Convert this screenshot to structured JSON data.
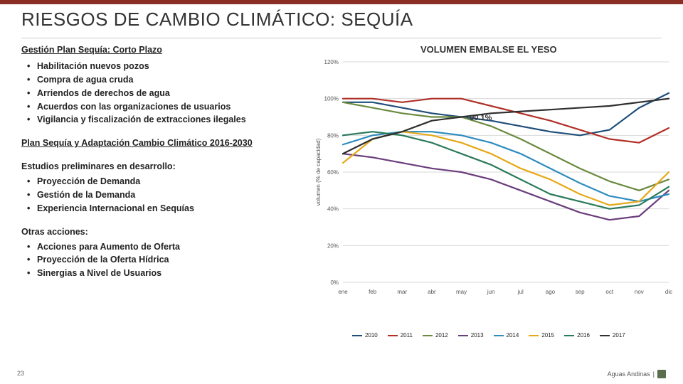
{
  "title": "RIESGOS DE CAMBIO CLIMÁTICO: SEQUÍA",
  "accent_color": "#8a2e26",
  "left": {
    "section1_title": "Gestión Plan Sequía: Corto Plazo",
    "section1_items": [
      "Habilitación nuevos pozos",
      "Compra de agua cruda",
      "Arriendos de derechos de agua",
      "Acuerdos con las organizaciones de usuarios",
      "Vigilancia y fiscalización de extracciones ilegales"
    ],
    "section2_title": "Plan Sequía y Adaptación Cambio Climático 2016-2030",
    "section3_title": "Estudios preliminares en desarrollo:",
    "section3_items": [
      "Proyección de Demanda",
      "Gestión de la Demanda",
      "Experiencia Internacional en Sequías"
    ],
    "section4_title": "Otras acciones:",
    "section4_items": [
      "Acciones para Aumento de Oferta",
      "Proyección de la Oferta Hídrica",
      "Sinergias a Nivel de Usuarios"
    ]
  },
  "chart": {
    "title": "VOLUMEN EMBALSE EL YESO",
    "type": "line",
    "x_categories": [
      "ene",
      "feb",
      "mar",
      "abr",
      "may",
      "jun",
      "jul",
      "ago",
      "sep",
      "oct",
      "nov",
      "dic"
    ],
    "ylabel": "volumen (% de capacidad)",
    "ylim": [
      0,
      120
    ],
    "ytick_step": 20,
    "ytick_labels": [
      "0%",
      "20%",
      "40%",
      "60%",
      "80%",
      "100%",
      "120%"
    ],
    "ytick_values": [
      0,
      20,
      40,
      60,
      80,
      100,
      120
    ],
    "background": "#ffffff",
    "grid_color": "#d9d9d9",
    "axis_color": "#888888",
    "label_fontsize": 8,
    "title_fontsize": 13,
    "line_width": 2.2,
    "callout": {
      "text": "90.1%",
      "month_index": 4,
      "value": 90.1
    },
    "series": [
      {
        "name": "2010",
        "color": "#1f4e79",
        "values": [
          98,
          98,
          95,
          92,
          90,
          88,
          85,
          82,
          80,
          83,
          95,
          103
        ]
      },
      {
        "name": "2011",
        "color": "#b03029",
        "values": [
          100,
          100,
          98,
          100,
          100,
          96,
          92,
          88,
          83,
          78,
          76,
          84
        ]
      },
      {
        "name": "2012",
        "color": "#6a8a3f",
        "values": [
          98,
          95,
          92,
          90,
          90,
          85,
          78,
          70,
          62,
          55,
          50,
          56
        ]
      },
      {
        "name": "2013",
        "color": "#6a3d7c",
        "values": [
          70,
          68,
          65,
          62,
          60,
          56,
          50,
          44,
          38,
          34,
          36,
          50
        ]
      },
      {
        "name": "2014",
        "color": "#2e8cbf",
        "values": [
          75,
          80,
          82,
          82,
          80,
          76,
          70,
          62,
          54,
          47,
          44,
          48
        ]
      },
      {
        "name": "2015",
        "color": "#e6a817",
        "values": [
          65,
          78,
          82,
          80,
          76,
          70,
          62,
          56,
          48,
          42,
          44,
          60
        ]
      },
      {
        "name": "2016",
        "color": "#2a7a5a",
        "values": [
          80,
          82,
          80,
          76,
          70,
          64,
          56,
          48,
          44,
          40,
          42,
          52
        ]
      },
      {
        "name": "2017",
        "color": "#2f2f2f",
        "values": [
          70,
          78,
          82,
          88,
          90,
          92,
          93,
          94,
          95,
          96,
          98,
          100
        ]
      }
    ]
  },
  "footer": {
    "page": "23",
    "brand": "Aguas Andinas"
  }
}
